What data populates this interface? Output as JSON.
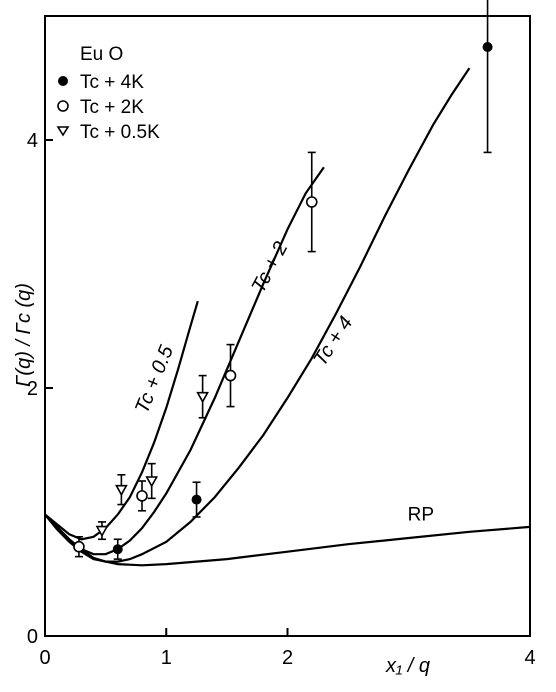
{
  "chart_data": {
    "type": "scatter",
    "title": "",
    "xlabel": "x₁ / q",
    "ylabel": "Γ(q) / Γc (q)",
    "xlim": [
      0,
      4
    ],
    "ylim": [
      0,
      5
    ],
    "x_ticks": [
      0,
      1,
      2,
      4
    ],
    "y_ticks": [
      0,
      2,
      4
    ],
    "grid": false,
    "legend": {
      "title": "Eu O",
      "placement": "top-left",
      "entries": [
        {
          "marker": "filled-circle",
          "label": "Tc + 4K"
        },
        {
          "marker": "open-circle",
          "label": "Tc + 2K"
        },
        {
          "marker": "open-triangle-down",
          "label": "Tc + 0.5K"
        }
      ]
    },
    "series": [
      {
        "marker": "filled-circle",
        "points": [
          {
            "x": 0.6,
            "y": 0.7,
            "err": 0.08
          },
          {
            "x": 1.25,
            "y": 1.1,
            "err": 0.14
          },
          {
            "x": 3.65,
            "y": 4.75,
            "err": 0.85
          }
        ]
      },
      {
        "marker": "open-circle",
        "points": [
          {
            "x": 0.28,
            "y": 0.72,
            "err": 0.08
          },
          {
            "x": 0.8,
            "y": 1.13,
            "err": 0.12
          },
          {
            "x": 1.53,
            "y": 2.1,
            "err": 0.25
          },
          {
            "x": 2.2,
            "y": 3.5,
            "err": 0.4
          }
        ]
      },
      {
        "marker": "open-triangle-down",
        "points": [
          {
            "x": 0.47,
            "y": 0.85,
            "err": 0.07
          },
          {
            "x": 0.63,
            "y": 1.18,
            "err": 0.12
          },
          {
            "x": 0.88,
            "y": 1.25,
            "err": 0.14
          },
          {
            "x": 1.3,
            "y": 1.93,
            "err": 0.17
          }
        ]
      }
    ],
    "curves": [
      {
        "label": "Tc + 0.5",
        "points": [
          [
            0,
            0.98
          ],
          [
            0.1,
            0.9
          ],
          [
            0.2,
            0.82
          ],
          [
            0.3,
            0.78
          ],
          [
            0.4,
            0.8
          ],
          [
            0.5,
            0.87
          ],
          [
            0.6,
            0.98
          ],
          [
            0.7,
            1.12
          ],
          [
            0.8,
            1.32
          ],
          [
            0.9,
            1.56
          ],
          [
            1.0,
            1.84
          ],
          [
            1.1,
            2.16
          ],
          [
            1.2,
            2.5
          ],
          [
            1.26,
            2.7
          ]
        ]
      },
      {
        "label": "Tc + 2",
        "points": [
          [
            0,
            0.98
          ],
          [
            0.1,
            0.88
          ],
          [
            0.2,
            0.78
          ],
          [
            0.3,
            0.7
          ],
          [
            0.4,
            0.66
          ],
          [
            0.5,
            0.66
          ],
          [
            0.6,
            0.7
          ],
          [
            0.7,
            0.77
          ],
          [
            0.8,
            0.87
          ],
          [
            0.9,
            1.0
          ],
          [
            1.0,
            1.15
          ],
          [
            1.2,
            1.5
          ],
          [
            1.4,
            1.92
          ],
          [
            1.6,
            2.38
          ],
          [
            1.8,
            2.84
          ],
          [
            2.0,
            3.28
          ],
          [
            2.15,
            3.57
          ],
          [
            2.3,
            3.78
          ]
        ]
      },
      {
        "label": "Tc + 4",
        "points": [
          [
            0,
            0.98
          ],
          [
            0.2,
            0.77
          ],
          [
            0.4,
            0.63
          ],
          [
            0.5,
            0.6
          ],
          [
            0.6,
            0.6
          ],
          [
            0.7,
            0.62
          ],
          [
            0.8,
            0.66
          ],
          [
            1.0,
            0.76
          ],
          [
            1.2,
            0.92
          ],
          [
            1.4,
            1.12
          ],
          [
            1.6,
            1.36
          ],
          [
            1.8,
            1.62
          ],
          [
            2.0,
            1.92
          ],
          [
            2.2,
            2.24
          ],
          [
            2.4,
            2.6
          ],
          [
            2.6,
            2.98
          ],
          [
            2.8,
            3.38
          ],
          [
            3.0,
            3.76
          ],
          [
            3.2,
            4.12
          ],
          [
            3.35,
            4.36
          ],
          [
            3.5,
            4.58
          ]
        ]
      },
      {
        "label": "RP",
        "points": [
          [
            0,
            0.98
          ],
          [
            0.1,
            0.86
          ],
          [
            0.2,
            0.76
          ],
          [
            0.3,
            0.68
          ],
          [
            0.4,
            0.62
          ],
          [
            0.5,
            0.6
          ],
          [
            0.6,
            0.58
          ],
          [
            0.8,
            0.57
          ],
          [
            1.0,
            0.58
          ],
          [
            1.5,
            0.62
          ],
          [
            2.0,
            0.68
          ],
          [
            2.5,
            0.74
          ],
          [
            3.0,
            0.79
          ],
          [
            3.5,
            0.84
          ],
          [
            4.0,
            0.88
          ]
        ]
      }
    ]
  }
}
